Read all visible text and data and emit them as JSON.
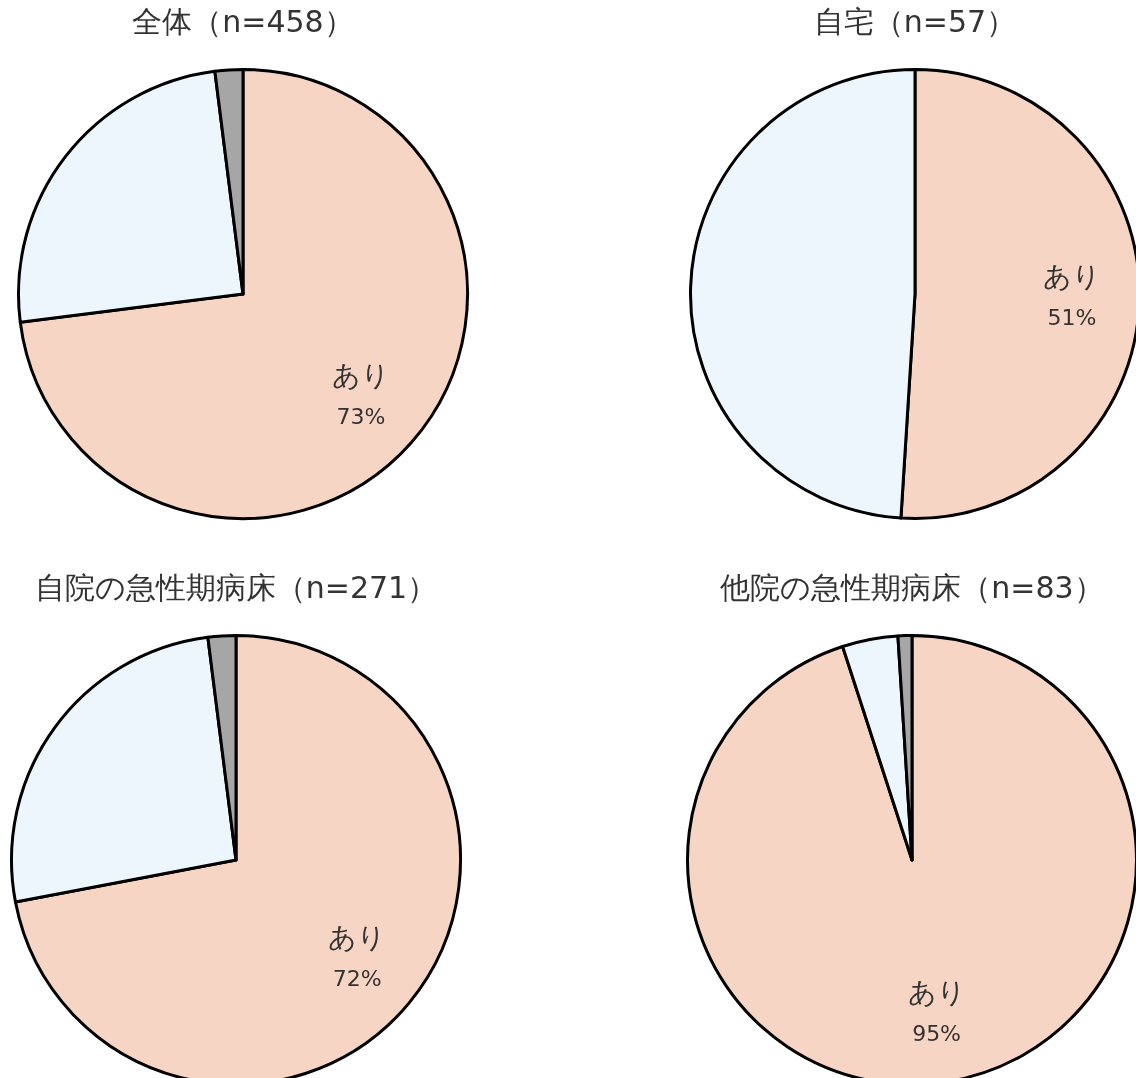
{
  "chart_data": [
    {
      "type": "pie",
      "title": "全体（n=458）",
      "categories": [
        "あり",
        null,
        null
      ],
      "values": [
        73,
        25,
        2
      ],
      "colors": [
        "#f7d5c4",
        "#eef6fd",
        "#a6a6a6"
      ],
      "value_labels": [
        "73%",
        null,
        null
      ],
      "legend": false
    },
    {
      "type": "pie",
      "title": "自宅（n=57）",
      "categories": [
        "あり",
        null
      ],
      "values": [
        51,
        49
      ],
      "colors": [
        "#f7d5c4",
        "#eef6fd"
      ],
      "value_labels": [
        "51%",
        null
      ],
      "legend": false
    },
    {
      "type": "pie",
      "title": "自院の急性期病床（n=271）",
      "categories": [
        "あり",
        null,
        null
      ],
      "values": [
        72,
        26,
        2
      ],
      "colors": [
        "#f7d5c4",
        "#eef6fd",
        "#a6a6a6"
      ],
      "value_labels": [
        "72%",
        null,
        null
      ],
      "legend": false
    },
    {
      "type": "pie",
      "title": "他院の急性期病床（n=83）",
      "categories": [
        "あり",
        null,
        null
      ],
      "values": [
        95,
        4,
        1
      ],
      "colors": [
        "#f7d5c4",
        "#eef6fd",
        "#a6a6a6"
      ],
      "value_labels": [
        "95%",
        null,
        null
      ],
      "legend": false
    }
  ]
}
